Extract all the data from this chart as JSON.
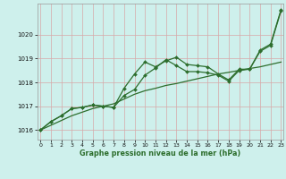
{
  "xlabel": "Graphe pression niveau de la mer (hPa)",
  "bg_color": "#cef0ec",
  "grid_color": "#d8a8a8",
  "line_color": "#2d6e2d",
  "xlim_min": -0.3,
  "xlim_max": 23.2,
  "ylim_min": 1015.6,
  "ylim_max": 1021.3,
  "yticks": [
    1016,
    1017,
    1018,
    1019,
    1020
  ],
  "xticks": [
    0,
    1,
    2,
    3,
    4,
    5,
    6,
    7,
    8,
    9,
    10,
    11,
    12,
    13,
    14,
    15,
    16,
    17,
    18,
    19,
    20,
    21,
    22,
    23
  ],
  "hours": [
    0,
    1,
    2,
    3,
    4,
    5,
    6,
    7,
    8,
    9,
    10,
    11,
    12,
    13,
    14,
    15,
    16,
    17,
    18,
    19,
    20,
    21,
    22,
    23
  ],
  "series_zigzag": [
    1016.0,
    1016.35,
    1016.6,
    1016.9,
    1016.95,
    1017.05,
    1017.0,
    1016.95,
    1017.75,
    1018.35,
    1018.85,
    1018.65,
    1018.9,
    1019.05,
    1018.75,
    1018.7,
    1018.65,
    1018.35,
    1018.1,
    1018.55,
    1018.55,
    1019.35,
    1019.6,
    1021.05
  ],
  "series_low": [
    1016.0,
    1016.35,
    1016.6,
    1016.9,
    1016.95,
    1017.05,
    1017.0,
    1016.95,
    1017.45,
    1017.7,
    1018.3,
    1018.6,
    1018.95,
    1018.7,
    1018.45,
    1018.45,
    1018.4,
    1018.3,
    1018.05,
    1018.5,
    1018.55,
    1019.3,
    1019.55,
    1021.0
  ],
  "series_trend": [
    1016.0,
    1016.2,
    1016.4,
    1016.6,
    1016.75,
    1016.9,
    1017.0,
    1017.1,
    1017.3,
    1017.5,
    1017.65,
    1017.75,
    1017.87,
    1017.95,
    1018.05,
    1018.15,
    1018.25,
    1018.35,
    1018.42,
    1018.5,
    1018.58,
    1018.65,
    1018.75,
    1018.85
  ]
}
